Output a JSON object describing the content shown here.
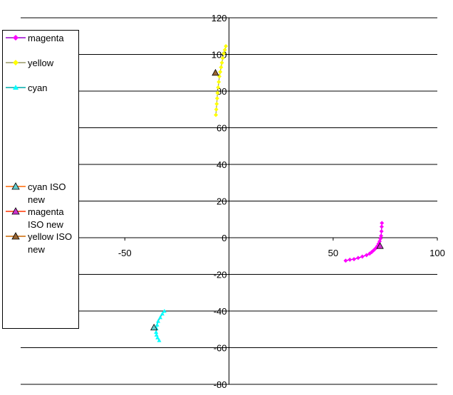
{
  "chart_data": {
    "type": "scatter",
    "title": "",
    "xlabel": "",
    "ylabel": "",
    "xlim": [
      -100,
      100
    ],
    "ylim": [
      -80,
      120
    ],
    "x_ticks": [
      -50,
      50,
      100
    ],
    "y_ticks": [
      120,
      100,
      80,
      60,
      40,
      20,
      0,
      -20,
      -40,
      -60,
      -80
    ],
    "x_tick_labels": [
      "-50",
      "50",
      "100"
    ],
    "y_tick_labels": [
      "120",
      "100",
      "80",
      "60",
      "40",
      "20",
      "0",
      "-20",
      "-40",
      "-60",
      "-80"
    ],
    "grid": "horizontal",
    "legend_position": "left",
    "series": [
      {
        "name": "magenta",
        "color": "#ff00ff",
        "line_color": "#9900cc",
        "marker": "diamond",
        "x": [
          56,
          58,
          60,
          62,
          64,
          66,
          67.5,
          68.5,
          69.5,
          70.5,
          71.2,
          71.8,
          72.3,
          72.7,
          73,
          73.2,
          73.3,
          73.4
        ],
        "y": [
          -12.5,
          -12,
          -11.7,
          -11,
          -10.3,
          -9.5,
          -8.7,
          -7.8,
          -6.8,
          -5.7,
          -4.6,
          -3.3,
          -2,
          -0.5,
          1,
          3.5,
          6,
          8
        ]
      },
      {
        "name": "yellow",
        "color": "#ffff00",
        "line_color": "#999966",
        "marker": "diamond",
        "x": [
          -6.3,
          -6.1,
          -5.9,
          -5.7,
          -5.5,
          -5.2,
          -4.9,
          -4.6,
          -4.2,
          -3.8,
          -3.4,
          -3,
          -2.5,
          -2,
          -1.5
        ],
        "y": [
          67,
          70,
          73,
          76,
          79,
          82,
          85,
          88,
          90.5,
          93,
          95.5,
          98,
          100.5,
          102.5,
          104.5
        ]
      },
      {
        "name": "cyan",
        "color": "#00ffff",
        "line_color": "#00aaaa",
        "marker": "triangle",
        "x": [
          -31,
          -32,
          -33,
          -34,
          -34.5,
          -34.8,
          -35,
          -34.8,
          -34.3,
          -33.5
        ],
        "y": [
          -40,
          -41.5,
          -43.5,
          -45.5,
          -47.5,
          -49.5,
          -51.5,
          -53,
          -54.5,
          -56
        ]
      },
      {
        "name": "cyan ISO new",
        "color": "#66cccc",
        "line_color": "#ff6600",
        "marker": "triangle",
        "x": [
          -36
        ],
        "y": [
          -49
        ]
      },
      {
        "name": "magenta ISO new",
        "color": "#cc33cc",
        "line_color": "#ff3300",
        "marker": "triangle",
        "x": [
          72.5
        ],
        "y": [
          -4.5
        ]
      },
      {
        "name": "yellow ISO new",
        "color": "#996633",
        "line_color": "#cc6600",
        "marker": "triangle",
        "x": [
          -6.5
        ],
        "y": [
          90
        ]
      }
    ]
  }
}
